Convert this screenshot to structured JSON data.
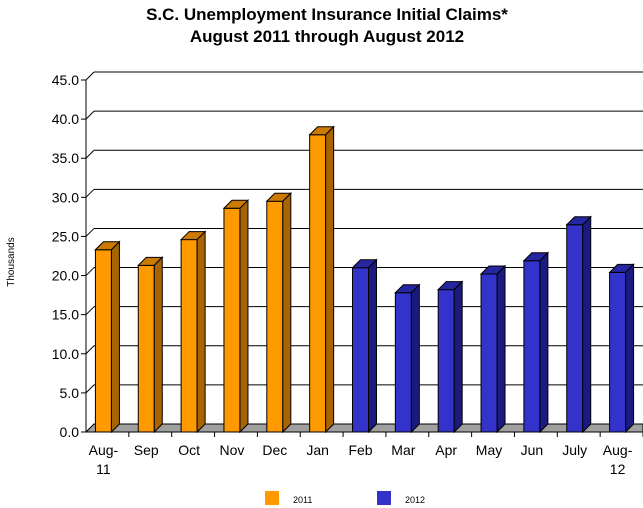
{
  "chart_data": {
    "type": "bar",
    "title_line1": "S.C. Unemployment Insurance Initial Claims*",
    "title_line2": "August 2011 through August 2012",
    "ylabel": "Thousands",
    "ylim": [
      0,
      45
    ],
    "yticks": [
      "0.0",
      "5.0",
      "10.0",
      "15.0",
      "20.0",
      "25.0",
      "30.0",
      "35.0",
      "40.0",
      "45.0"
    ],
    "categories": [
      {
        "line1": "Aug-",
        "line2": "11"
      },
      {
        "line1": "Sep",
        "line2": ""
      },
      {
        "line1": "Oct",
        "line2": ""
      },
      {
        "line1": "Nov",
        "line2": ""
      },
      {
        "line1": "Dec",
        "line2": ""
      },
      {
        "line1": "Jan",
        "line2": ""
      },
      {
        "line1": "Feb",
        "line2": ""
      },
      {
        "line1": "Mar",
        "line2": ""
      },
      {
        "line1": "Apr",
        "line2": ""
      },
      {
        "line1": "May",
        "line2": ""
      },
      {
        "line1": "Jun",
        "line2": ""
      },
      {
        "line1": "July",
        "line2": ""
      },
      {
        "line1": "Aug-",
        "line2": "12"
      }
    ],
    "values": [
      23.3,
      21.3,
      24.6,
      28.6,
      29.5,
      38.0,
      21.0,
      17.8,
      18.2,
      20.2,
      21.9,
      26.5,
      20.4
    ],
    "series_index": [
      0,
      0,
      0,
      0,
      0,
      0,
      1,
      1,
      1,
      1,
      1,
      1,
      1
    ],
    "series": [
      {
        "name": "2011",
        "color": "#ff9900",
        "side_color": "#a86400",
        "top_color": "#cc7a00"
      },
      {
        "name": "2012",
        "color": "#3333cc",
        "side_color": "#1a1a80",
        "top_color": "#2626a0"
      }
    ],
    "grid": true,
    "legend_position": "bottom"
  }
}
